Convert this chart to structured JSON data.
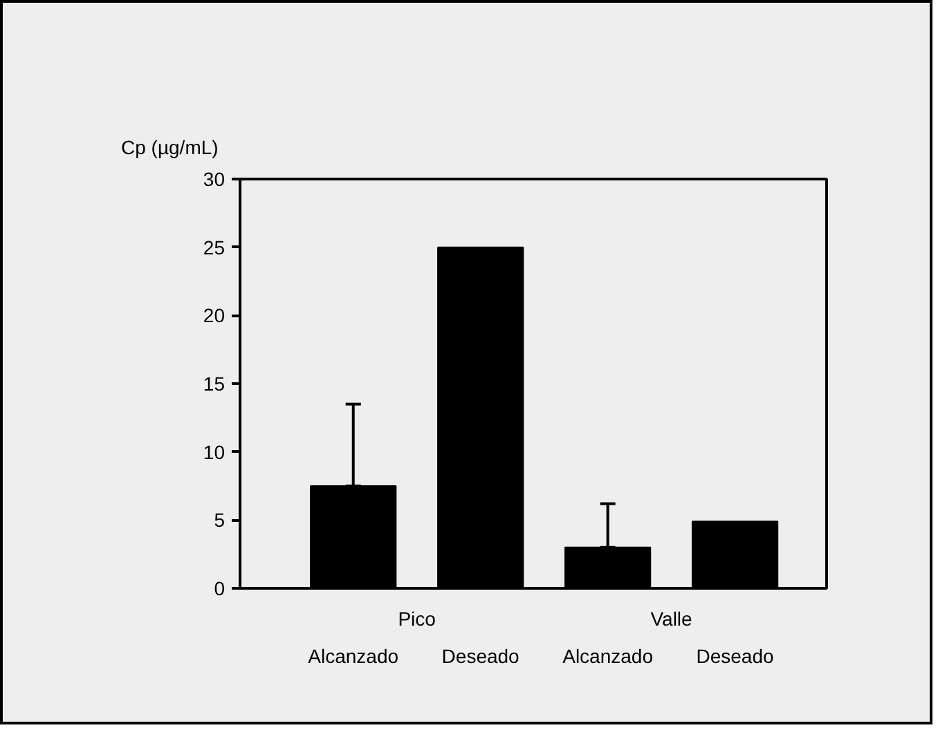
{
  "chart_data": {
    "type": "bar",
    "ylabel": "Cp (µg/mL)",
    "categories": [
      "Alcanzado",
      "Deseado",
      "Alcanzado",
      "Deseado"
    ],
    "values": [
      7.5,
      25,
      3.0,
      4.9
    ],
    "errors": [
      [
        7.5,
        13.5
      ],
      null,
      [
        3.0,
        6.2
      ],
      null
    ],
    "color": "#000000",
    "annotations": [
      "Pico",
      "Valle"
    ],
    "ylim": [
      0,
      30
    ],
    "yticks": [
      0,
      5,
      10,
      15,
      20,
      25,
      30
    ],
    "grid": false
  }
}
